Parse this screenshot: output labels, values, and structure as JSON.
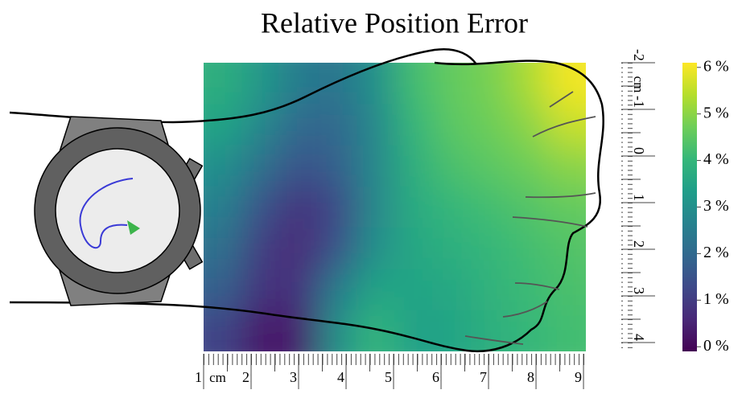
{
  "chart_data": {
    "type": "heatmap",
    "title": "Relative Position Error",
    "xlabel": "cm",
    "ylabel": "cm",
    "xlim": [
      1,
      9.05
    ],
    "xticks": [
      1,
      2,
      3,
      4,
      5,
      6,
      7,
      8,
      9
    ],
    "ylim": [
      -2,
      4.19
    ],
    "yticks": [
      -2,
      -1,
      0,
      1,
      2,
      3,
      4
    ],
    "values": [
      [
        3.8,
        3.2,
        2.5,
        2.3,
        3.0,
        4.2,
        4.6,
        4.8,
        5.3,
        6.0
      ],
      [
        3.5,
        2.8,
        2.0,
        2.0,
        2.8,
        4.0,
        4.5,
        4.7,
        5.0,
        5.6
      ],
      [
        3.0,
        2.2,
        1.5,
        1.8,
        2.8,
        3.8,
        4.3,
        4.5,
        4.7,
        5.0
      ],
      [
        2.6,
        1.5,
        0.8,
        1.3,
        2.8,
        3.7,
        4.0,
        4.2,
        4.4,
        4.6
      ],
      [
        2.2,
        1.0,
        0.6,
        1.5,
        3.0,
        3.6,
        3.8,
        4.0,
        4.2,
        4.4
      ],
      [
        1.8,
        0.8,
        0.8,
        2.5,
        3.5,
        3.5,
        3.6,
        3.9,
        4.1,
        4.3
      ],
      [
        1.2,
        0.3,
        0.4,
        3.0,
        4.0,
        3.4,
        3.5,
        3.8,
        4.0,
        4.2
      ]
    ],
    "clim": [
      -0.1,
      6.1
    ],
    "cticks": [
      {
        "value": 0,
        "label": "0 %"
      },
      {
        "value": 1,
        "label": "1 %"
      },
      {
        "value": 2,
        "label": "2 %"
      },
      {
        "value": 3,
        "label": "3 %"
      },
      {
        "value": 4,
        "label": "4 %"
      },
      {
        "value": 5,
        "label": "5 %"
      },
      {
        "value": 6,
        "label": "6 %"
      }
    ],
    "colorscale": [
      "#440154",
      "#482878",
      "#3e4989",
      "#31688e",
      "#26828e",
      "#1f9e89",
      "#35b779",
      "#6ece58",
      "#b5de2b",
      "#fde725"
    ]
  }
}
